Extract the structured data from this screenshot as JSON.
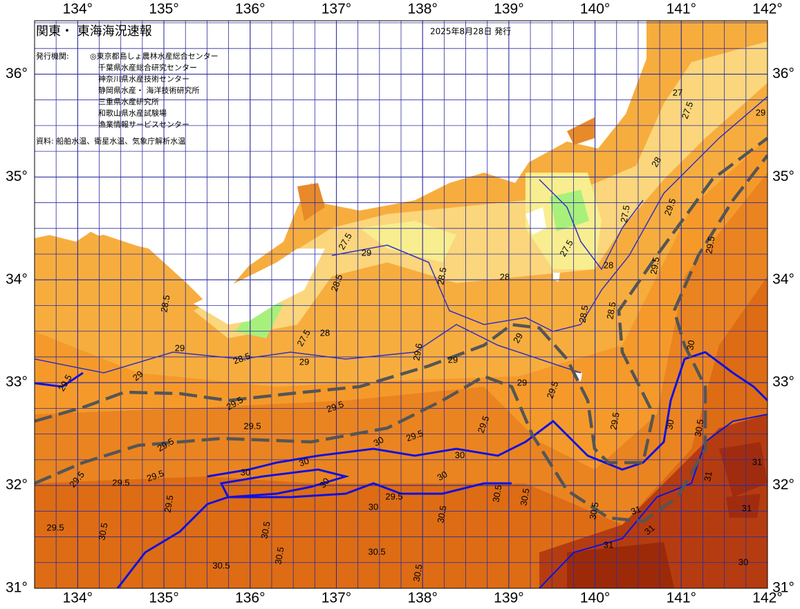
{
  "header": {
    "title": "関東・ 東海海況速報",
    "issue_date": "2025年8月28日 発行"
  },
  "issuers_label": "発行機関:",
  "issuers": [
    "◎東京都島しょ農林水産総合センター",
    "千葉県水産総合研究センター",
    "神奈川県水産技術センター",
    "静岡県水産・ 海洋技術研究所",
    "三重県水産研究所",
    "和歌山県水産試験場",
    "漁業情報サービスセンター"
  ],
  "source": "資料: 船舶水温、衛星水温、気象庁解析水温",
  "axes": {
    "xlim": [
      133.5,
      142
    ],
    "ylim": [
      31,
      36.52
    ],
    "xticks": [
      {
        "value": 134,
        "label": "134°"
      },
      {
        "value": 135,
        "label": "135°"
      },
      {
        "value": 136,
        "label": "136°"
      },
      {
        "value": 137,
        "label": "137°"
      },
      {
        "value": 138,
        "label": "138°"
      },
      {
        "value": 139,
        "label": "139°"
      },
      {
        "value": 140,
        "label": "140°"
      },
      {
        "value": 141,
        "label": "141°"
      },
      {
        "value": 142,
        "label": "142°"
      }
    ],
    "yticks": [
      {
        "value": 31,
        "label": "31°"
      },
      {
        "value": 32,
        "label": "32°"
      },
      {
        "value": 33,
        "label": "33°"
      },
      {
        "value": 34,
        "label": "34°"
      },
      {
        "value": 35,
        "label": "35°"
      },
      {
        "value": 36,
        "label": "36°"
      }
    ]
  },
  "contour_labels": [
    "27",
    "27.5",
    "28",
    "29",
    "29.5",
    "29.5",
    "28",
    "28",
    "27.5",
    "27.5",
    "27.5",
    "29",
    "28.5",
    "28.5",
    "28.5",
    "27.5",
    "28",
    "29",
    "28.5",
    "29",
    "29.6",
    "29",
    "29",
    "28.5",
    "28.5",
    "29",
    "29.5",
    "29.5",
    "29.5",
    "29.5",
    "29.5",
    "29.5",
    "29.5",
    "29",
    "29.5",
    "29.5",
    "30",
    "30.5",
    "30",
    "29.5",
    "30",
    "30",
    "30",
    "30",
    "30",
    "30",
    "30",
    "29.5",
    "29.5",
    "29.5",
    "29.5",
    "29.5",
    "29.5",
    "30.5",
    "30.5",
    "30.5",
    "30.5",
    "30.5",
    "30.5",
    "30.5",
    "30.5",
    "30.5",
    "30.5",
    "31",
    "31",
    "31",
    "31",
    "31",
    "31",
    "30"
  ]
}
